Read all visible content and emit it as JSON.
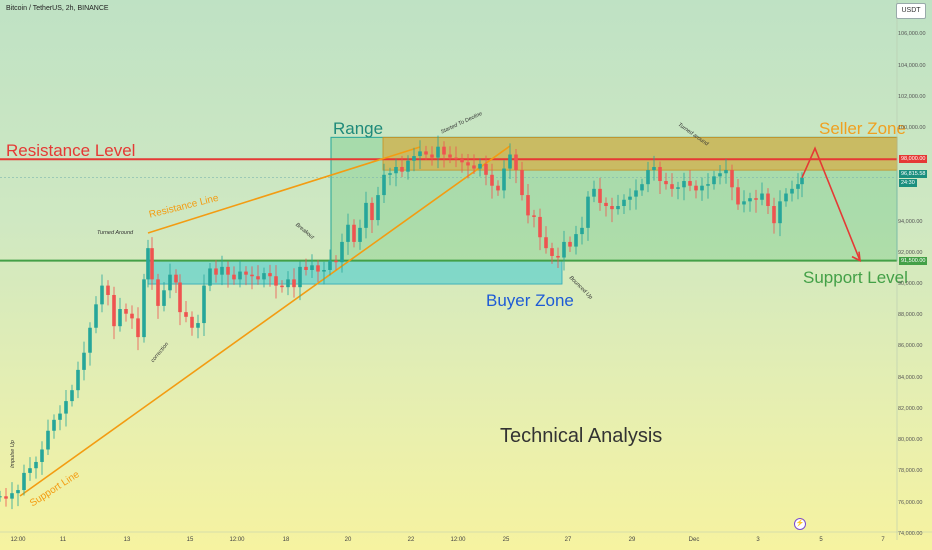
{
  "header": {
    "symbol_label": "Bitcoin / TetherUS, 2h, BINANCE",
    "currency": "USDT"
  },
  "colors": {
    "resistance": "#e53935",
    "support": "#43a047",
    "seller_zone": "#f0a020",
    "buyer_zone": "#26c6da",
    "range": "#26a69a",
    "trendline": "#f39c12",
    "candle_up": "#26a69a",
    "candle_down": "#ef5350",
    "projection": "#e53935"
  },
  "chart_data": {
    "type": "candlestick",
    "title": "Technical Analysis",
    "y_axis": {
      "ticks": [
        "106,000.00",
        "104,000.00",
        "102,000.00",
        "100,000.00",
        "98,000.00",
        "96,815.58",
        "94,000.00",
        "92,000.00",
        "91,500.00",
        "90,000.00",
        "88,000.00",
        "86,000.00",
        "84,000.00",
        "82,000.00",
        "80,000.00",
        "78,000.00",
        "76,000.00",
        "74,000.00"
      ],
      "tick_values": [
        106000,
        104000,
        102000,
        100000,
        98000,
        96815.58,
        94000,
        92000,
        91500,
        90000,
        88000,
        86000,
        84000,
        82000,
        80000,
        78000,
        76000,
        74000
      ],
      "ylim": [
        73600,
        108200
      ]
    },
    "x_axis": {
      "ticks": [
        "12:00",
        "11",
        "13",
        "15",
        "12:00",
        "18",
        "20",
        "22",
        "12:00",
        "25",
        "27",
        "29",
        "Dec",
        "3",
        "5",
        "7"
      ]
    },
    "resistance_level": {
      "label": "Resistance Level",
      "value": 98000,
      "tag": "98,000.00"
    },
    "support_level": {
      "label": "Support Level",
      "value": 91500,
      "tag": "91,500.00"
    },
    "current_price": {
      "value": 96815.58,
      "tag": "96,815.58",
      "countdown": "24:30"
    },
    "seller_zone": {
      "label": "Seller Zone",
      "low": 97300,
      "high": 99400
    },
    "buyer_zone": {
      "label": "Buyer Zone",
      "low": 90000,
      "high": 91500
    },
    "range": {
      "label": "Range",
      "low": 91500,
      "high": 99400
    },
    "trendlines": [
      {
        "label": "Resistance Line"
      },
      {
        "label": "Support Line"
      }
    ],
    "annotations": [
      "Impulse Up",
      "Turned Around",
      "correction",
      "Breakout",
      "Started To Decline",
      "Bounced Up",
      "Turned around"
    ],
    "price_path": [
      [
        0,
        76400
      ],
      [
        6,
        76250
      ],
      [
        12,
        76600
      ],
      [
        18,
        76800
      ],
      [
        24,
        77900
      ],
      [
        30,
        78200
      ],
      [
        36,
        78600
      ],
      [
        42,
        79400
      ],
      [
        48,
        80600
      ],
      [
        54,
        81300
      ],
      [
        60,
        81700
      ],
      [
        66,
        82500
      ],
      [
        72,
        83200
      ],
      [
        78,
        84500
      ],
      [
        84,
        85600
      ],
      [
        90,
        87200
      ],
      [
        96,
        88700
      ],
      [
        102,
        89900
      ],
      [
        108,
        89300
      ],
      [
        114,
        87300
      ],
      [
        120,
        88400
      ],
      [
        126,
        88100
      ],
      [
        132,
        87800
      ],
      [
        138,
        86600
      ],
      [
        144,
        90300
      ],
      [
        148,
        92300
      ],
      [
        152,
        90300
      ],
      [
        158,
        88600
      ],
      [
        164,
        89600
      ],
      [
        170,
        90600
      ],
      [
        176,
        90100
      ],
      [
        180,
        88200
      ],
      [
        186,
        87900
      ],
      [
        192,
        87200
      ],
      [
        198,
        87500
      ],
      [
        204,
        89900
      ],
      [
        210,
        91000
      ],
      [
        216,
        90600
      ],
      [
        222,
        91100
      ],
      [
        228,
        90600
      ],
      [
        234,
        90300
      ],
      [
        240,
        90800
      ],
      [
        246,
        90600
      ],
      [
        252,
        90500
      ],
      [
        258,
        90300
      ],
      [
        264,
        90700
      ],
      [
        270,
        90500
      ],
      [
        276,
        89900
      ],
      [
        282,
        89800
      ],
      [
        288,
        90300
      ],
      [
        294,
        89800
      ],
      [
        300,
        91100
      ],
      [
        306,
        90900
      ],
      [
        312,
        91200
      ],
      [
        318,
        90800
      ],
      [
        324,
        90900
      ],
      [
        330,
        91500
      ],
      [
        336,
        91400
      ],
      [
        342,
        92700
      ],
      [
        348,
        93800
      ],
      [
        354,
        92700
      ],
      [
        360,
        93600
      ],
      [
        366,
        95200
      ],
      [
        372,
        94100
      ],
      [
        378,
        95700
      ],
      [
        384,
        97000
      ],
      [
        390,
        97100
      ],
      [
        396,
        97500
      ],
      [
        402,
        97200
      ],
      [
        408,
        97900
      ],
      [
        414,
        98200
      ],
      [
        420,
        98500
      ],
      [
        426,
        98300
      ],
      [
        432,
        98100
      ],
      [
        438,
        98800
      ],
      [
        444,
        98300
      ],
      [
        450,
        98100
      ],
      [
        456,
        98000
      ],
      [
        462,
        97800
      ],
      [
        468,
        97600
      ],
      [
        474,
        97400
      ],
      [
        480,
        97700
      ],
      [
        486,
        97000
      ],
      [
        492,
        96300
      ],
      [
        498,
        96000
      ],
      [
        504,
        97400
      ],
      [
        510,
        98300
      ],
      [
        516,
        97300
      ],
      [
        522,
        95700
      ],
      [
        528,
        94400
      ],
      [
        534,
        94300
      ],
      [
        540,
        93000
      ],
      [
        546,
        92300
      ],
      [
        552,
        91800
      ],
      [
        558,
        91700
      ],
      [
        564,
        92700
      ],
      [
        570,
        92400
      ],
      [
        576,
        93200
      ],
      [
        582,
        93600
      ],
      [
        588,
        95600
      ],
      [
        594,
        96100
      ],
      [
        600,
        95200
      ],
      [
        606,
        95000
      ],
      [
        612,
        94800
      ],
      [
        618,
        95000
      ],
      [
        624,
        95400
      ],
      [
        630,
        95600
      ],
      [
        636,
        96000
      ],
      [
        642,
        96400
      ],
      [
        648,
        97300
      ],
      [
        654,
        97500
      ],
      [
        660,
        96600
      ],
      [
        666,
        96400
      ],
      [
        672,
        96100
      ],
      [
        678,
        96200
      ],
      [
        684,
        96600
      ],
      [
        690,
        96300
      ],
      [
        696,
        96000
      ],
      [
        702,
        96300
      ],
      [
        708,
        96400
      ],
      [
        714,
        96900
      ],
      [
        720,
        97100
      ],
      [
        726,
        97300
      ],
      [
        732,
        96200
      ],
      [
        738,
        95100
      ],
      [
        744,
        95300
      ],
      [
        750,
        95500
      ],
      [
        756,
        95400
      ],
      [
        762,
        95800
      ],
      [
        768,
        95000
      ],
      [
        774,
        93900
      ],
      [
        780,
        95300
      ],
      [
        786,
        95800
      ],
      [
        792,
        96100
      ],
      [
        798,
        96400
      ],
      [
        802,
        96815.58
      ]
    ],
    "projection_path": [
      [
        802,
        96815.58
      ],
      [
        815,
        98700
      ],
      [
        860,
        91500
      ]
    ],
    "legend": "none",
    "grid": false
  }
}
